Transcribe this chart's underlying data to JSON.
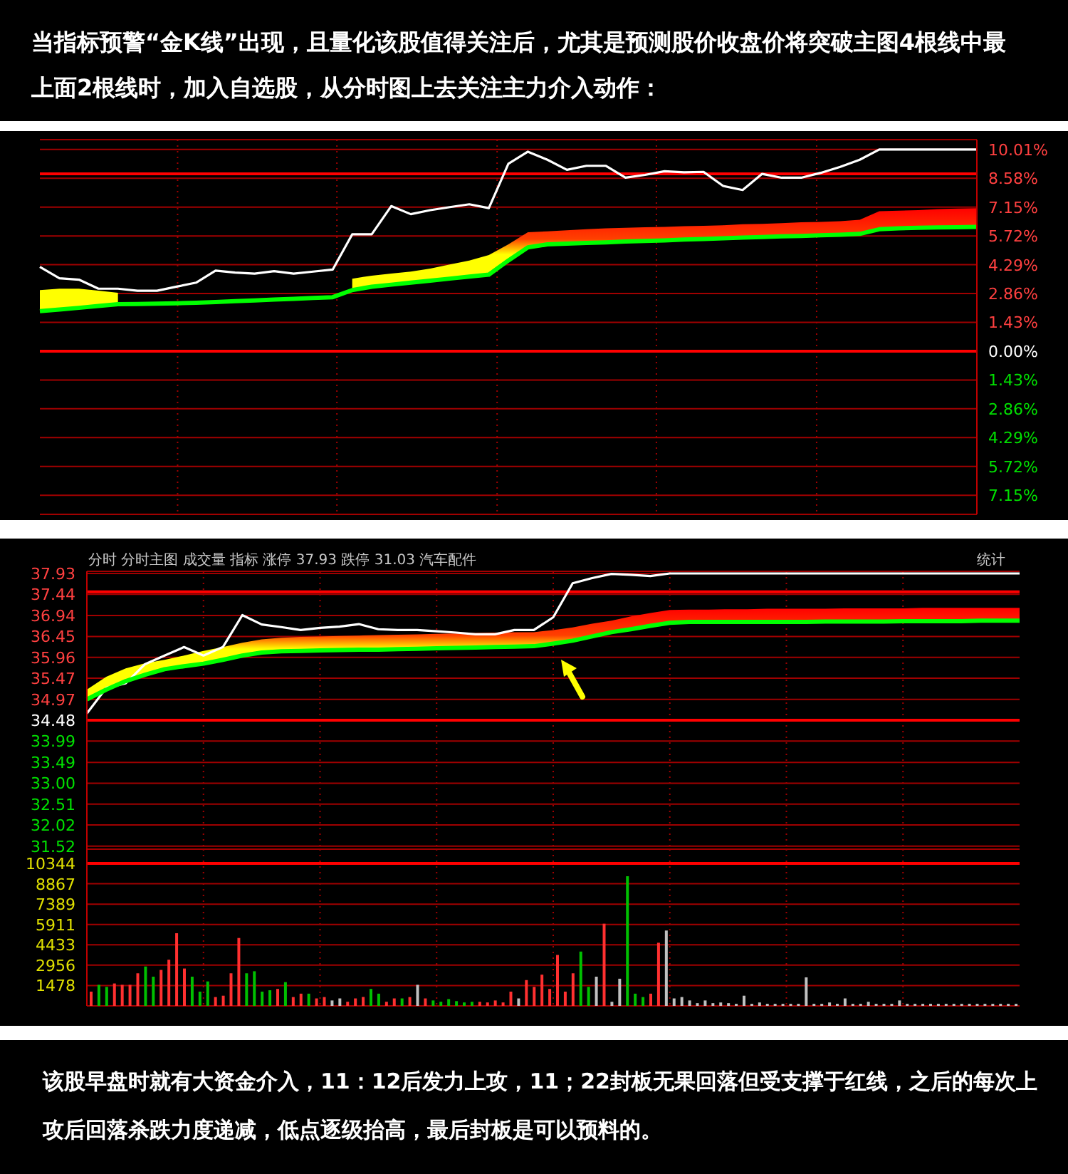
{
  "chart_data": [
    {
      "type": "line",
      "title": "当指标预警“金K线”出现，且量化该股值得关注后，尤其是预测股价收盘价将突破主图4根线中最上面2根线时，加入自选股，从分时图上去关注主力介入动作：",
      "categories": [
        null,
        null,
        null,
        null,
        null,
        null,
        null,
        null,
        null,
        null,
        null,
        null,
        null,
        null,
        null,
        null,
        null,
        null,
        null,
        null,
        null,
        null,
        null,
        null,
        null,
        null,
        null,
        null,
        null,
        null,
        null,
        null,
        null,
        null,
        null,
        null,
        null,
        null,
        null,
        null,
        null,
        null,
        null,
        null,
        null,
        null,
        null,
        null,
        null
      ],
      "series": [
        {
          "color": "#ffffff",
          "values": [
            4.18,
            3.62,
            3.55,
            3.1,
            3.1,
            3.0,
            3.0,
            3.2,
            3.4,
            4.0,
            3.9,
            3.85,
            3.97,
            3.85,
            3.95,
            4.05,
            5.8,
            5.8,
            7.2,
            6.8,
            7.0,
            7.15,
            7.29,
            7.1,
            9.3,
            9.9,
            9.5,
            9.0,
            9.2,
            9.2,
            8.61,
            8.75,
            8.93,
            8.88,
            8.9,
            8.2,
            8.0,
            8.8,
            8.61,
            8.61,
            8.85,
            9.15,
            9.5,
            10.01,
            10.01,
            10.01,
            10.01,
            10.01,
            10.01
          ]
        },
        {
          "color": "#00ff00",
          "values": [
            1.99,
            2.07,
            2.15,
            2.24,
            2.33,
            2.34,
            2.36,
            2.38,
            2.4,
            2.44,
            2.48,
            2.52,
            2.56,
            2.6,
            2.64,
            2.68,
            3.03,
            3.2,
            3.3,
            3.4,
            3.5,
            3.6,
            3.7,
            3.8,
            4.5,
            5.15,
            5.3,
            5.34,
            5.37,
            5.4,
            5.44,
            5.47,
            5.5,
            5.54,
            5.57,
            5.6,
            5.64,
            5.66,
            5.7,
            5.72,
            5.75,
            5.78,
            5.82,
            6.05,
            6.1,
            6.12,
            6.14,
            6.15,
            6.17
          ],
          "lower": [
            1.99,
            2.07,
            2.15,
            2.24,
            2.33,
            null,
            null,
            null,
            null,
            null,
            null,
            null,
            null,
            null,
            null,
            null,
            3.03,
            3.2,
            3.3,
            3.4,
            3.5,
            3.6,
            3.7,
            3.8,
            4.5,
            5.15,
            5.3,
            5.34,
            5.37,
            5.4,
            5.44,
            5.47,
            5.5,
            5.54,
            5.57,
            5.6,
            5.64,
            5.66,
            5.7,
            5.72,
            5.75,
            5.78,
            5.82,
            6.05,
            6.1,
            6.12,
            6.14,
            6.15,
            6.17
          ],
          "upper": [
            3.03,
            3.1,
            3.1,
            3.0,
            2.9,
            null,
            null,
            null,
            null,
            null,
            null,
            null,
            null,
            null,
            null,
            null,
            3.6,
            3.75,
            3.85,
            3.95,
            4.1,
            4.3,
            4.5,
            4.77,
            5.3,
            5.9,
            5.95,
            6.0,
            6.05,
            6.1,
            6.12,
            6.15,
            6.17,
            6.2,
            6.22,
            6.25,
            6.3,
            6.32,
            6.35,
            6.4,
            6.42,
            6.45,
            6.52,
            6.95,
            6.97,
            7.0,
            7.05,
            7.08,
            7.1
          ]
        }
      ],
      "ylim": [
        -8.1,
        10.5
      ],
      "yticks": [
        {
          "value": 10.01,
          "label": "10.01%"
        },
        {
          "value": 8.58,
          "label": "8.58%"
        },
        {
          "value": 7.15,
          "label": "7.15%"
        },
        {
          "value": 5.72,
          "label": "5.72%"
        },
        {
          "value": 4.29,
          "label": "4.29%"
        },
        {
          "value": 2.86,
          "label": "2.86%"
        },
        {
          "value": 1.43,
          "label": "1.43%"
        },
        {
          "value": 0,
          "label": "0.00%"
        },
        {
          "value": -1.43,
          "label": "1.43%"
        },
        {
          "value": -2.86,
          "label": "2.86%"
        },
        {
          "value": -4.29,
          "label": "4.29%"
        },
        {
          "value": -5.72,
          "label": "5.72%"
        },
        {
          "value": -7.15,
          "label": "7.15%"
        }
      ],
      "ref_lines": [
        {
          "axis": "y",
          "value": 0,
          "color": "#ff0000"
        },
        {
          "axis": "y",
          "value": 8.8,
          "color": "#ff0000"
        }
      ],
      "grid": true,
      "tick_labels": "y"
    },
    {
      "type": "line",
      "subtitle": "分时 分时主图 成交量 指标 涨停 37.93 跌停 31.03 汽车配件",
      "annotations": [
        "统计"
      ],
      "categories": [
        null,
        null,
        null,
        null,
        null,
        null,
        null,
        null,
        null,
        null,
        null,
        null,
        null,
        null,
        null,
        null,
        null,
        null,
        null,
        null,
        null,
        null,
        null,
        null,
        null,
        null,
        null,
        null,
        null,
        null,
        null,
        null,
        null,
        null,
        null,
        null,
        null,
        null,
        null,
        null,
        null,
        null,
        null,
        null,
        null,
        null,
        null,
        null,
        null
      ],
      "series": [
        {
          "color": "#ffffff",
          "values": [
            34.64,
            35.24,
            35.35,
            35.8,
            36.0,
            36.2,
            36.0,
            36.2,
            36.95,
            36.73,
            36.67,
            36.6,
            36.65,
            36.68,
            36.74,
            36.62,
            36.6,
            36.6,
            36.57,
            36.54,
            36.5,
            36.5,
            36.6,
            36.6,
            36.9,
            37.7,
            37.82,
            37.92,
            37.9,
            37.87,
            37.93,
            37.93,
            37.93,
            37.93,
            37.93,
            37.93,
            37.93,
            37.93,
            37.93,
            37.93,
            37.93,
            37.93,
            37.93,
            37.93,
            37.93,
            37.93,
            37.93,
            37.93,
            37.93
          ]
        },
        {
          "color": "#00ff00",
          "values": [
            34.97,
            35.2,
            35.4,
            35.55,
            35.68,
            35.75,
            35.81,
            35.9,
            36.0,
            36.07,
            36.1,
            36.11,
            36.12,
            36.13,
            36.14,
            36.14,
            36.15,
            36.16,
            36.17,
            36.18,
            36.19,
            36.2,
            36.21,
            36.22,
            36.28,
            36.35,
            36.45,
            36.55,
            36.62,
            36.7,
            36.77,
            36.79,
            36.79,
            36.79,
            36.79,
            36.79,
            36.79,
            36.79,
            36.8,
            36.8,
            36.8,
            36.8,
            36.81,
            36.81,
            36.81,
            36.81,
            36.82,
            36.82,
            36.82
          ],
          "lower": [
            34.97,
            35.2,
            35.4,
            35.55,
            35.68,
            35.75,
            35.81,
            35.9,
            36.0,
            36.07,
            36.1,
            36.11,
            36.12,
            36.13,
            36.14,
            36.14,
            36.15,
            36.16,
            36.17,
            36.18,
            36.19,
            36.2,
            36.21,
            36.22,
            36.28,
            36.35,
            36.45,
            36.55,
            36.62,
            36.7,
            36.77,
            36.79,
            36.79,
            36.79,
            36.79,
            36.79,
            36.79,
            36.79,
            36.8,
            36.8,
            36.8,
            36.8,
            36.81,
            36.81,
            36.81,
            36.81,
            36.82,
            36.82,
            36.82
          ],
          "upper": [
            35.2,
            35.5,
            35.7,
            35.82,
            35.9,
            36.0,
            36.11,
            36.2,
            36.3,
            36.38,
            36.42,
            36.44,
            36.45,
            36.46,
            36.47,
            36.48,
            36.49,
            36.5,
            36.51,
            36.52,
            36.53,
            36.54,
            36.55,
            36.55,
            36.6,
            36.66,
            36.75,
            36.82,
            36.92,
            37.0,
            37.07,
            37.08,
            37.08,
            37.09,
            37.09,
            37.1,
            37.1,
            37.1,
            37.1,
            37.11,
            37.11,
            37.11,
            37.11,
            37.12,
            37.12,
            37.12,
            37.12,
            37.12,
            37.12
          ]
        }
      ],
      "ylim": [
        31.45,
        37.98
      ],
      "yticks": [
        37.93,
        37.44,
        36.94,
        36.45,
        35.96,
        35.47,
        34.97,
        34.48,
        33.99,
        33.49,
        {
          "value": 33,
          "label": "33.00"
        },
        32.51,
        32.02,
        31.52
      ],
      "ref_lines": [
        {
          "axis": "y",
          "value": 34.48,
          "color": "#ff0000"
        },
        {
          "axis": "y",
          "value": 37.5,
          "color": "#ff0000"
        }
      ],
      "grid": true,
      "tick_labels": "y"
    },
    {
      "type": "bar",
      "annotations": [
        "该股早盘时就有大资金介入，11：12后发力上攻，11；22封板无果回落但受支撑于红线，之后的每次上攻后回落杀跌力度递减，低点逐级抬高，最后封板是可以预料的。"
      ],
      "categories": [
        null,
        null,
        null,
        null,
        null,
        null,
        null,
        null,
        null,
        null,
        null,
        null,
        null,
        null,
        null,
        null,
        null,
        null,
        null,
        null,
        null,
        null,
        null,
        null,
        null,
        null,
        null,
        null,
        null,
        null,
        null,
        null,
        null,
        null,
        null,
        null,
        null,
        null,
        null,
        null,
        null,
        null,
        null,
        null,
        null,
        null,
        null,
        null,
        null,
        null,
        null,
        null,
        null,
        null,
        null,
        null,
        null,
        null,
        null,
        null,
        null,
        null,
        null,
        null,
        null,
        null,
        null,
        null,
        null,
        null,
        null,
        null,
        null,
        null,
        null,
        null,
        null,
        null,
        null,
        null,
        null,
        null,
        null,
        null,
        null,
        null,
        null,
        null,
        null,
        null,
        null,
        null,
        null,
        null,
        null,
        null,
        null,
        null,
        null,
        null,
        null,
        null,
        null,
        null,
        null,
        null,
        null,
        null,
        null,
        null,
        null,
        null,
        null,
        null,
        null,
        null,
        null,
        null,
        null,
        null
      ],
      "values": [
        1035,
        1528,
        1380,
        1627,
        1528,
        1528,
        2366,
        2859,
        2120,
        2613,
        3352,
        5275,
        2712,
        2120,
        1035,
        1775,
        641,
        740,
        2366,
        4930,
        2366,
        2514,
        1035,
        1134,
        1232,
        1725,
        641,
        887,
        887,
        542,
        641,
        394,
        542,
        300,
        542,
        641,
        1232,
        887,
        300,
        542,
        542,
        641,
        1528,
        542,
        394,
        300,
        493,
        345,
        250,
        296,
        296,
        250,
        394,
        250,
        1035,
        542,
        1873,
        1380,
        2268,
        1232,
        3698,
        1035,
        2366,
        3944,
        1380,
        2120,
        5965,
        296,
        1972,
        9416,
        887,
        641,
        887,
        4585,
        5472,
        542,
        641,
        394,
        200,
        394,
        200,
        247,
        200,
        150,
        740,
        150,
        247,
        150,
        150,
        148,
        150,
        150,
        2071,
        150,
        150,
        247,
        150,
        542,
        150,
        150,
        296,
        150,
        150,
        150,
        394,
        150,
        150,
        150,
        150,
        150,
        150,
        148,
        150,
        150,
        150,
        150,
        148,
        150,
        150,
        150
      ],
      "colors": [
        "#ff3030",
        "#00c000",
        "#00c000",
        "#ff3030",
        "#ff3030",
        "#ff3030",
        "#ff3030",
        "#00c000",
        "#00c000",
        "#ff3030",
        "#ff3030",
        "#ff3030",
        "#ff3030",
        "#00c000",
        "#00c000",
        "#00c000",
        "#ff3030",
        "#ff3030",
        "#ff3030",
        "#ff3030",
        "#00c000",
        "#00c000",
        "#00c000",
        "#00c000",
        "#ff3030",
        "#00c000",
        "#ff3030",
        "#ff3030",
        "#00c000",
        "#ff3030",
        "#ff3030",
        "#c0c0c0",
        "#c0c0c0",
        "#ff3030",
        "#ff3030",
        "#ff3030",
        "#00c000",
        "#00c000",
        "#ff3030",
        "#ff3030",
        "#00c000",
        "#ff3030",
        "#c0c0c0",
        "#ff3030",
        "#00c000",
        "#00c000",
        "#00c000",
        "#00c000",
        "#00c000",
        "#00c000",
        "#ff3030",
        "#ff3030",
        "#ff3030",
        "#ff3030",
        "#ff3030",
        "#c0c0c0",
        "#ff3030",
        "#ff3030",
        "#ff3030",
        "#ff3030",
        "#ff3030",
        "#ff3030",
        "#ff3030",
        "#00c000",
        "#00c000",
        "#c0c0c0",
        "#ff3030",
        "#c0c0c0",
        "#c0c0c0",
        "#00c000",
        "#00c000",
        "#00c000",
        "#ff3030",
        "#ff3030",
        "#c0c0c0",
        "#c0c0c0",
        "#c0c0c0",
        "#c0c0c0",
        "#c0c0c0",
        "#c0c0c0",
        "#c0c0c0",
        "#c0c0c0",
        "#c0c0c0",
        "#c0c0c0",
        "#c0c0c0",
        "#c0c0c0",
        "#c0c0c0",
        "#c0c0c0",
        "#c0c0c0",
        "#c0c0c0",
        "#c0c0c0",
        "#c0c0c0",
        "#c0c0c0",
        "#c0c0c0",
        "#c0c0c0",
        "#c0c0c0",
        "#c0c0c0",
        "#c0c0c0",
        "#c0c0c0",
        "#c0c0c0",
        "#c0c0c0",
        "#c0c0c0",
        "#c0c0c0",
        "#c0c0c0",
        "#c0c0c0",
        "#c0c0c0",
        "#c0c0c0",
        "#c0c0c0",
        "#c0c0c0",
        "#c0c0c0",
        "#c0c0c0",
        "#c0c0c0",
        "#c0c0c0",
        "#c0c0c0",
        "#c0c0c0",
        "#c0c0c0",
        "#c0c0c0",
        "#c0c0c0",
        "#c0c0c0",
        "#c0c0c0"
      ],
      "ylim": [
        0,
        11380
      ],
      "yticks": [
        1478,
        2956,
        4433,
        5911,
        7389,
        8867,
        10344
      ],
      "ref_lines": [
        {
          "axis": "y",
          "value": 10344,
          "color": "#ff0000"
        }
      ],
      "grid": true,
      "tick_labels": "y"
    }
  ]
}
